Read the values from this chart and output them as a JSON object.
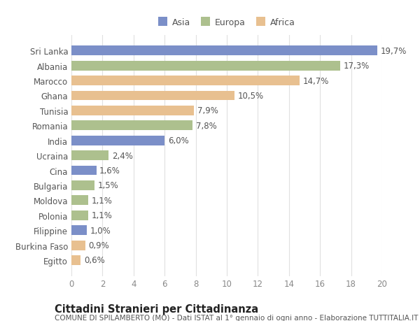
{
  "categories": [
    "Sri Lanka",
    "Albania",
    "Marocco",
    "Ghana",
    "Tunisia",
    "Romania",
    "India",
    "Ucraina",
    "Cina",
    "Bulgaria",
    "Moldova",
    "Polonia",
    "Filippine",
    "Burkina Faso",
    "Egitto"
  ],
  "values": [
    19.7,
    17.3,
    14.7,
    10.5,
    7.9,
    7.8,
    6.0,
    2.4,
    1.6,
    1.5,
    1.1,
    1.1,
    1.0,
    0.9,
    0.6
  ],
  "labels": [
    "19,7%",
    "17,3%",
    "14,7%",
    "10,5%",
    "7,9%",
    "7,8%",
    "6,0%",
    "2,4%",
    "1,6%",
    "1,5%",
    "1,1%",
    "1,1%",
    "1,0%",
    "0,9%",
    "0,6%"
  ],
  "continents": [
    "Asia",
    "Europa",
    "Africa",
    "Africa",
    "Africa",
    "Europa",
    "Asia",
    "Europa",
    "Asia",
    "Europa",
    "Europa",
    "Europa",
    "Asia",
    "Africa",
    "Africa"
  ],
  "colors": {
    "Asia": "#7b8fc8",
    "Europa": "#adc08e",
    "Africa": "#e8c090"
  },
  "legend_labels": [
    "Asia",
    "Europa",
    "Africa"
  ],
  "legend_colors": [
    "#7b8fc8",
    "#adc08e",
    "#e8c090"
  ],
  "xlim": [
    0,
    20
  ],
  "xticks": [
    0,
    2,
    4,
    6,
    8,
    10,
    12,
    14,
    16,
    18,
    20
  ],
  "title": "Cittadini Stranieri per Cittadinanza",
  "subtitle": "COMUNE DI SPILAMBERTO (MO) - Dati ISTAT al 1° gennaio di ogni anno - Elaborazione TUTTITALIA.IT",
  "bg_color": "#ffffff",
  "plot_bg_color": "#ffffff",
  "grid_color": "#e0e0e0",
  "bar_height": 0.65,
  "label_fontsize": 8.5,
  "tick_fontsize": 8.5,
  "title_fontsize": 10.5,
  "subtitle_fontsize": 7.5
}
